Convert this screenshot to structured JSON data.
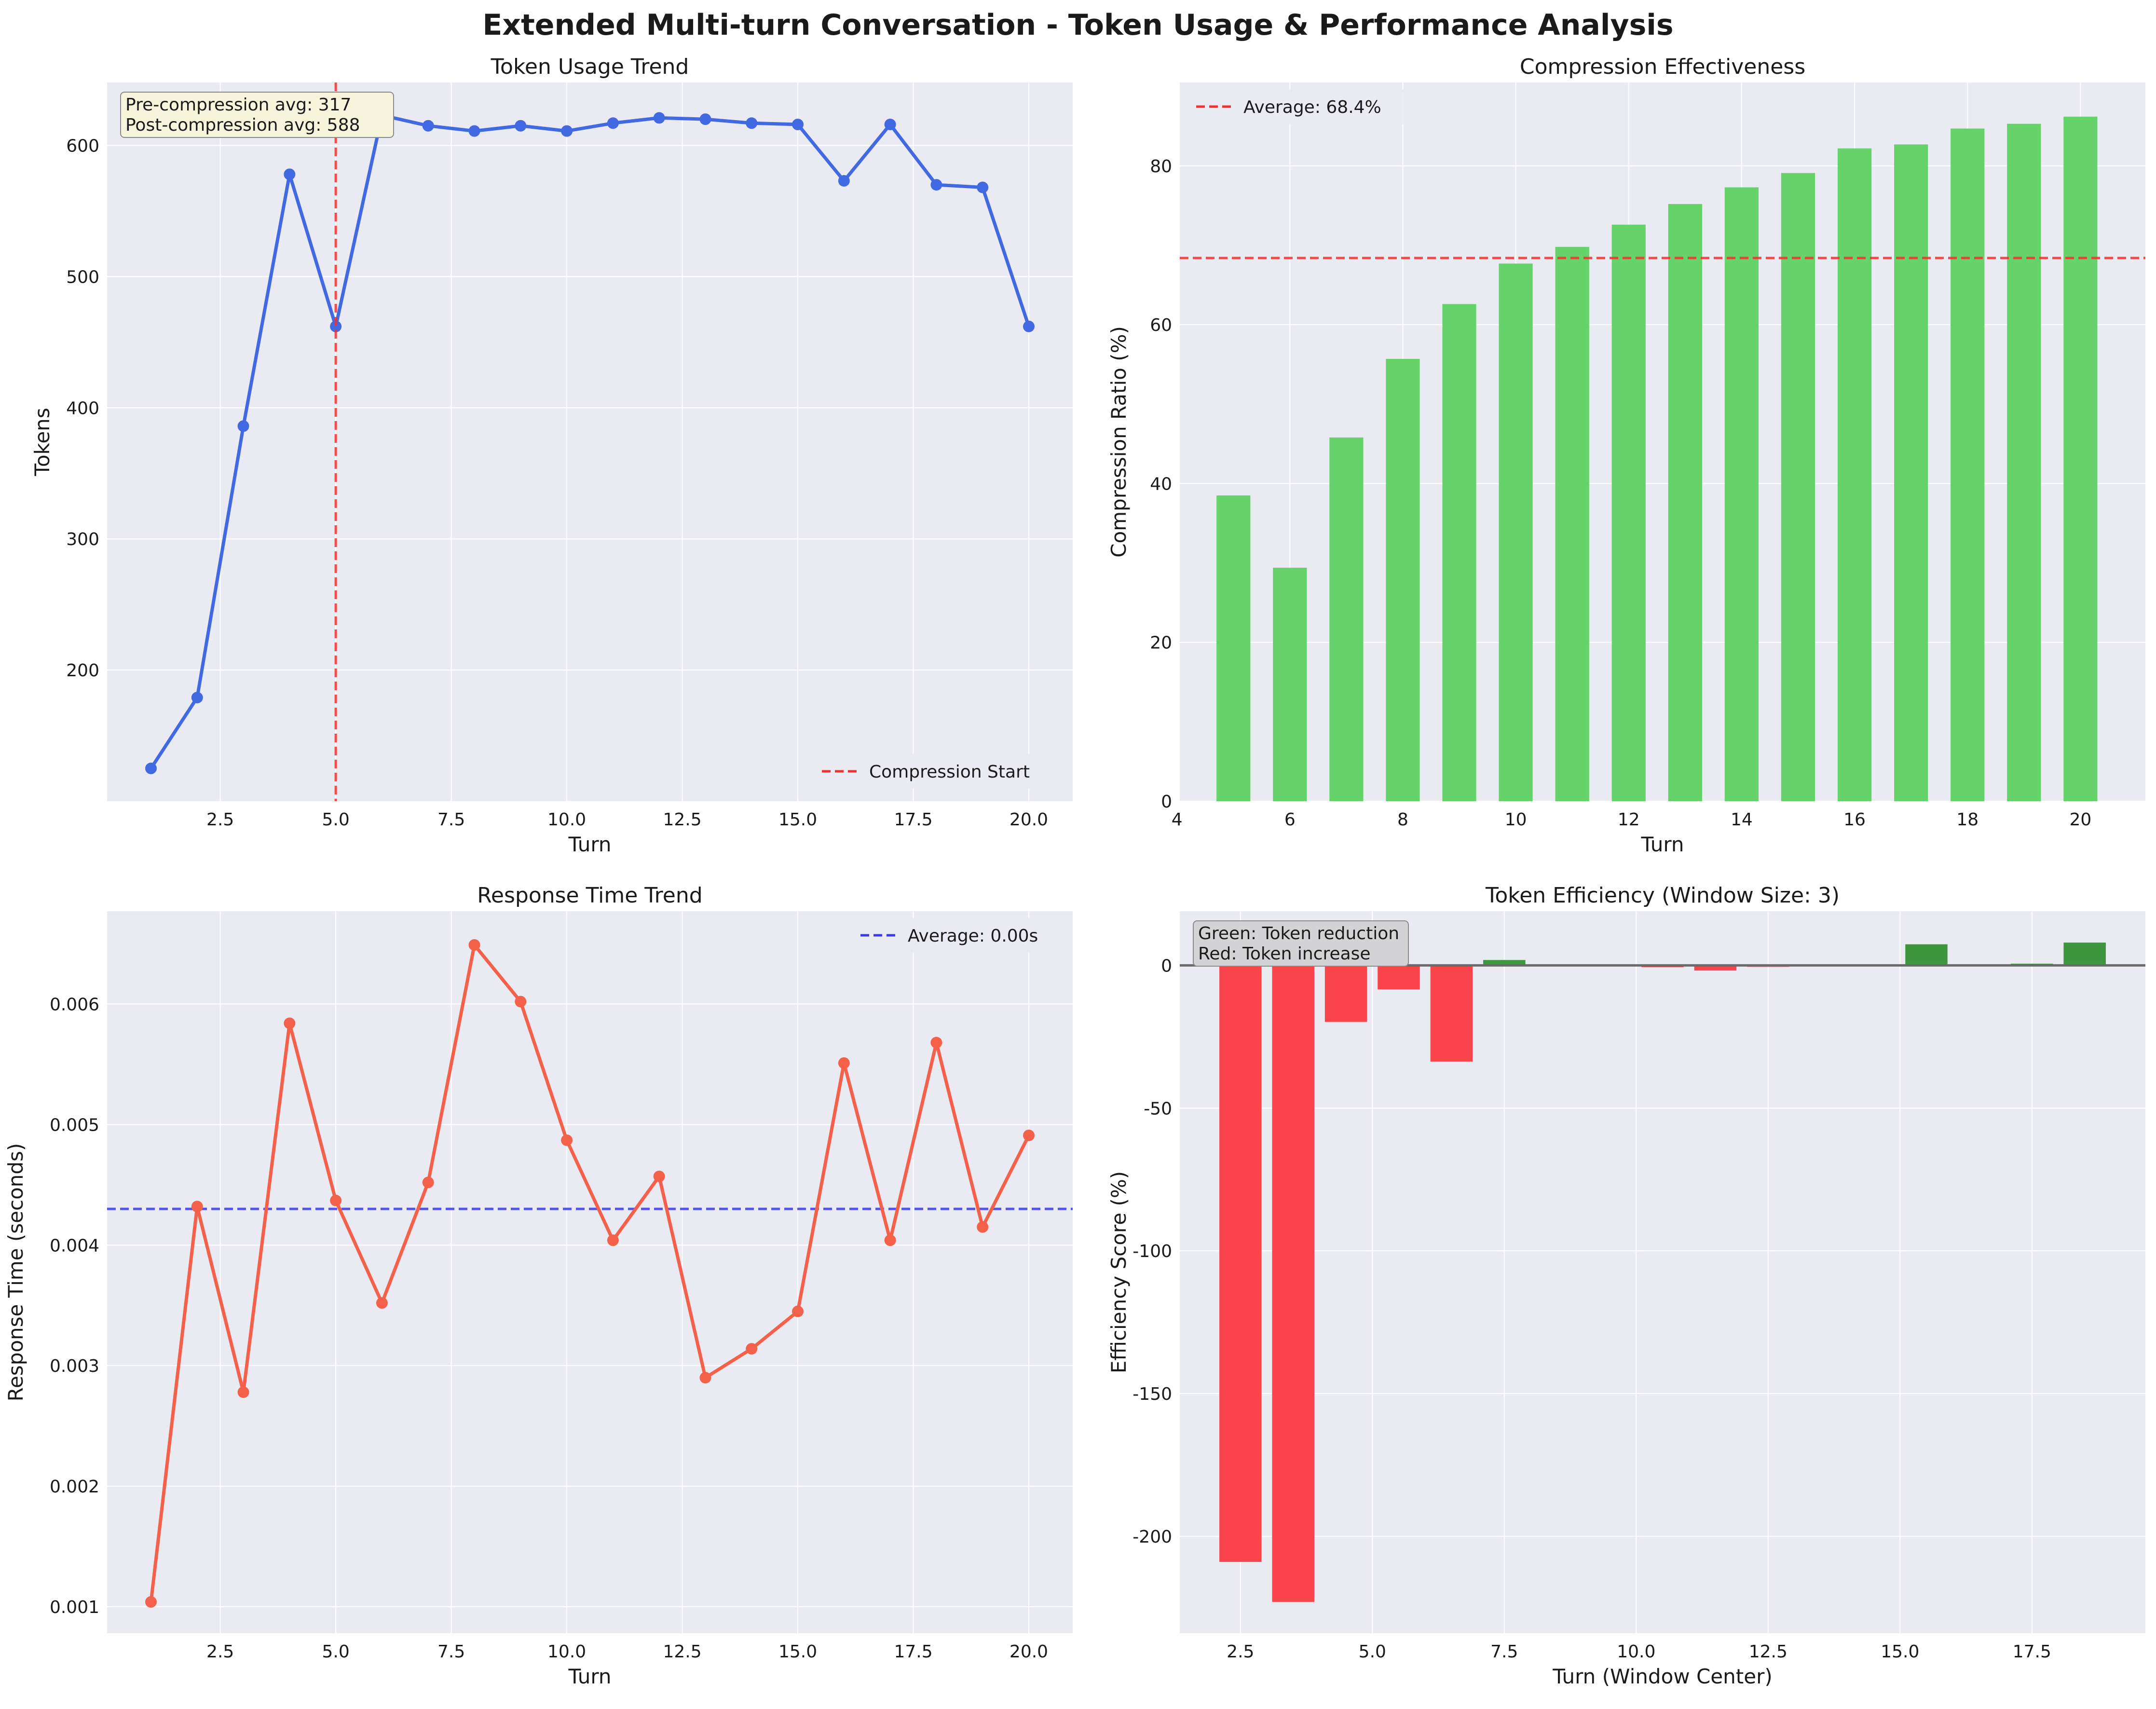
{
  "figure": {
    "title": "Extended Multi-turn Conversation - Token Usage & Performance Analysis"
  },
  "colors": {
    "background": "#eaeaf2",
    "grid": "#ffffff",
    "tokens_line": "#4169e1",
    "response_line": "#f4614a",
    "bar_green": "#66d36a",
    "bar_red": "#f8444a",
    "bar_dark_green": "#3e963e",
    "ref_red": "#f03030",
    "ref_blue": "#3a3ae6",
    "zero_line": "#6b6b6b"
  },
  "chart_data": [
    {
      "id": "token_usage",
      "type": "line",
      "title": "Token Usage Trend",
      "xlabel": "Turn",
      "ylabel": "Tokens",
      "xlim": [
        0.05,
        20.95
      ],
      "ylim": [
        100,
        648
      ],
      "xticks": [
        2.5,
        5.0,
        7.5,
        10.0,
        12.5,
        15.0,
        17.5,
        20.0
      ],
      "xticklabels": [
        "2.5",
        "5.0",
        "7.5",
        "10.0",
        "12.5",
        "15.0",
        "17.5",
        "20.0"
      ],
      "yticks": [
        200,
        300,
        400,
        500,
        600
      ],
      "yticklabels": [
        "200",
        "300",
        "400",
        "500",
        "600"
      ],
      "x": [
        1,
        2,
        3,
        4,
        5,
        6,
        7,
        8,
        9,
        10,
        11,
        12,
        13,
        14,
        15,
        16,
        17,
        18,
        19,
        20
      ],
      "y": [
        125,
        179,
        386,
        578,
        462,
        623,
        615,
        611,
        615,
        611,
        617,
        621,
        620,
        617,
        616,
        573,
        616,
        570,
        568,
        462
      ],
      "vline": {
        "x": 5,
        "label": "Compression Start"
      },
      "legend_position": "lower-right",
      "annotation_lines": [
        "Pre-compression avg: 317",
        "Post-compression avg: 588"
      ],
      "grid": true
    },
    {
      "id": "compression",
      "type": "bar",
      "title": "Compression Effectiveness",
      "xlabel": "Turn",
      "ylabel": "Compression Ratio (%)",
      "xlim": [
        4.05,
        21.15
      ],
      "ylim": [
        0,
        90.5
      ],
      "xticks": [
        4,
        6,
        8,
        10,
        12,
        14,
        16,
        18,
        20
      ],
      "xticklabels": [
        "4",
        "6",
        "8",
        "10",
        "12",
        "14",
        "16",
        "18",
        "20"
      ],
      "yticks": [
        0,
        20,
        40,
        60,
        80
      ],
      "yticklabels": [
        "0",
        "20",
        "40",
        "60",
        "80"
      ],
      "x": [
        5,
        6,
        7,
        8,
        9,
        10,
        11,
        12,
        13,
        14,
        15,
        16,
        17,
        18,
        19,
        20
      ],
      "values": [
        38.5,
        29.4,
        45.8,
        55.7,
        62.6,
        67.7,
        69.8,
        72.6,
        75.2,
        77.3,
        79.1,
        82.2,
        82.7,
        84.7,
        85.3,
        86.2
      ],
      "hline": {
        "y": 68.4,
        "label": "Average: 68.4%"
      },
      "legend_position": "upper-left",
      "grid": true
    },
    {
      "id": "response_time",
      "type": "line",
      "title": "Response Time Trend",
      "xlabel": "Turn",
      "ylabel": "Response Time (seconds)",
      "xlim": [
        0.05,
        20.95
      ],
      "ylim": [
        0.00078,
        0.00677
      ],
      "xticks": [
        2.5,
        5.0,
        7.5,
        10.0,
        12.5,
        15.0,
        17.5,
        20.0
      ],
      "xticklabels": [
        "2.5",
        "5.0",
        "7.5",
        "10.0",
        "12.5",
        "15.0",
        "17.5",
        "20.0"
      ],
      "yticks": [
        0.001,
        0.002,
        0.003,
        0.004,
        0.005,
        0.006
      ],
      "yticklabels": [
        "0.001",
        "0.002",
        "0.003",
        "0.004",
        "0.005",
        "0.006"
      ],
      "x": [
        1,
        2,
        3,
        4,
        5,
        6,
        7,
        8,
        9,
        10,
        11,
        12,
        13,
        14,
        15,
        16,
        17,
        18,
        19,
        20
      ],
      "y": [
        0.00104,
        0.00432,
        0.00278,
        0.00584,
        0.00437,
        0.00352,
        0.00452,
        0.00649,
        0.00602,
        0.00487,
        0.00404,
        0.00457,
        0.0029,
        0.00314,
        0.00345,
        0.00551,
        0.00404,
        0.00568,
        0.00415,
        0.00491
      ],
      "hline": {
        "y": 0.0043,
        "label": "Average: 0.00s"
      },
      "legend_position": "upper-right",
      "grid": true
    },
    {
      "id": "efficiency",
      "type": "bar",
      "title": "Token Efficiency (Window Size: 3)",
      "xlabel": "Turn (Window Center)",
      "ylabel": "Efficiency Score (%)",
      "xlim": [
        1.35,
        19.65
      ],
      "ylim": [
        -234,
        19
      ],
      "xticks": [
        2.5,
        5.0,
        7.5,
        10.0,
        12.5,
        15.0,
        17.5
      ],
      "xticklabels": [
        "2.5",
        "5.0",
        "7.5",
        "10.0",
        "12.5",
        "15.0",
        "17.5"
      ],
      "yticks": [
        -200,
        -150,
        -100,
        -50,
        0
      ],
      "yticklabels": [
        "-200",
        "-150",
        "-100",
        "-50",
        "0"
      ],
      "x": [
        2.5,
        3.5,
        4.5,
        5.5,
        6.5,
        7.5,
        8.5,
        9.5,
        10.5,
        11.5,
        12.5,
        13.5,
        14.5,
        15.5,
        16.5,
        17.5,
        18.5
      ],
      "values": [
        -209,
        -223,
        -19.8,
        -8.4,
        -33.7,
        1.9,
        0.2,
        0.3,
        -0.6,
        -1.8,
        -0.5,
        0.4,
        0.4,
        7.4,
        0.2,
        0.6,
        8.0
      ],
      "zero_line": 0,
      "annotation_lines": [
        "Green: Token reduction",
        "Red: Token increase"
      ],
      "grid": true
    }
  ]
}
